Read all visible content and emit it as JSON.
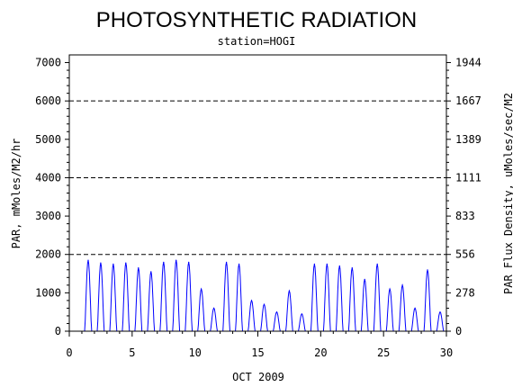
{
  "chart_data": {
    "type": "line",
    "title": "PHOTOSYNTHETIC RADIATION",
    "subtitle": "station=HOGI",
    "xlabel": "OCT 2009",
    "ylabel": "PAR, mMoles/M2/hr",
    "y2label": "PAR Flux Density, uMoles/sec/M2",
    "xlim": [
      0,
      30
    ],
    "ylim": [
      0,
      7200
    ],
    "x_ticks": [
      0,
      5,
      10,
      15,
      20,
      25,
      30
    ],
    "y_ticks": [
      0,
      1000,
      2000,
      3000,
      4000,
      5000,
      6000,
      7000
    ],
    "y2_ticks": [
      0,
      278,
      556,
      833,
      1111,
      1389,
      1667,
      1944
    ],
    "gridlines_y": [
      2000,
      4000,
      6000
    ],
    "grid_style": "dashed horizontal",
    "line_color": "#0000ff",
    "series": [
      {
        "name": "",
        "daily_peaks": [
          {
            "day": 1.5,
            "peak": 1850
          },
          {
            "day": 2.5,
            "peak": 1780
          },
          {
            "day": 3.5,
            "peak": 1750
          },
          {
            "day": 4.5,
            "peak": 1780
          },
          {
            "day": 5.5,
            "peak": 1650
          },
          {
            "day": 6.5,
            "peak": 1550
          },
          {
            "day": 7.5,
            "peak": 1800
          },
          {
            "day": 8.5,
            "peak": 1850
          },
          {
            "day": 9.5,
            "peak": 1800
          },
          {
            "day": 10.5,
            "peak": 1100
          },
          {
            "day": 11.5,
            "peak": 600
          },
          {
            "day": 12.5,
            "peak": 1800
          },
          {
            "day": 13.5,
            "peak": 1750
          },
          {
            "day": 14.5,
            "peak": 800
          },
          {
            "day": 15.5,
            "peak": 700
          },
          {
            "day": 16.5,
            "peak": 500
          },
          {
            "day": 17.5,
            "peak": 1050
          },
          {
            "day": 18.5,
            "peak": 450
          },
          {
            "day": 19.5,
            "peak": 1750
          },
          {
            "day": 20.5,
            "peak": 1750
          },
          {
            "day": 21.5,
            "peak": 1700
          },
          {
            "day": 22.5,
            "peak": 1650
          },
          {
            "day": 23.5,
            "peak": 1350
          },
          {
            "day": 24.5,
            "peak": 1750
          },
          {
            "day": 25.5,
            "peak": 1100
          },
          {
            "day": 26.5,
            "peak": 1200
          },
          {
            "day": 27.5,
            "peak": 600
          },
          {
            "day": 28.5,
            "peak": 1600
          },
          {
            "day": 29.5,
            "peak": 500
          }
        ]
      }
    ]
  }
}
